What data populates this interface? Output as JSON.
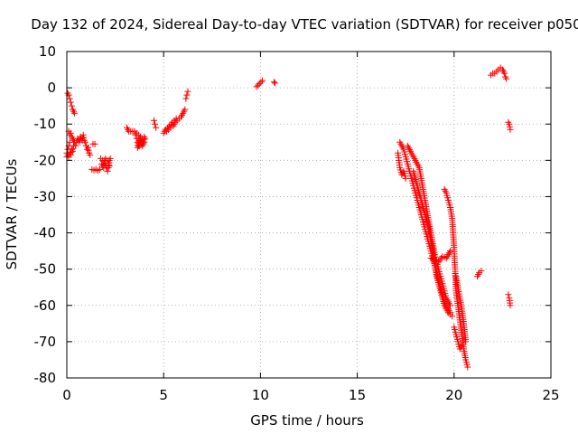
{
  "chart_data": {
    "type": "scatter",
    "title": "Day 132 of 2024, Sidereal Day-to-day VTEC variation (SDTVAR) for receiver p050",
    "xlabel": "GPS time / hours",
    "ylabel": "SDTVAR / TECUs",
    "xlim": [
      0,
      25
    ],
    "ylim": [
      -80,
      10
    ],
    "xticks": [
      0,
      5,
      10,
      15,
      20,
      25
    ],
    "yticks": [
      -80,
      -70,
      -60,
      -50,
      -40,
      -30,
      -20,
      -10,
      0,
      10
    ],
    "xtick_labels": [
      "0",
      "5",
      "10",
      "15",
      "20",
      "25"
    ],
    "ytick_labels": [
      "-80",
      "-70",
      "-60",
      "-50",
      "-40",
      "-30",
      "-20",
      "-10",
      "0",
      "10"
    ],
    "grid": true,
    "legend": false,
    "marker": "plus",
    "series": [
      {
        "name": "SDTVAR",
        "color": "#ff0000",
        "segments": [
          [
            [
              0.0,
              -19
            ],
            [
              0.05,
              -18.5
            ],
            [
              0.1,
              -19
            ],
            [
              0.15,
              -18
            ],
            [
              0.2,
              -18.5
            ],
            [
              0.25,
              -17
            ],
            [
              0.3,
              -17.5
            ],
            [
              0.35,
              -16
            ],
            [
              0.4,
              -15
            ],
            [
              0.45,
              -16
            ],
            [
              0.5,
              -15
            ],
            [
              0.55,
              -14
            ],
            [
              0.6,
              -14.5
            ],
            [
              0.65,
              -15
            ],
            [
              0.7,
              -13.5
            ],
            [
              0.75,
              -14
            ],
            [
              0.8,
              -14.5
            ],
            [
              0.85,
              -13
            ],
            [
              0.9,
              -14.5
            ],
            [
              0.95,
              -15
            ],
            [
              1.0,
              -16
            ],
            [
              1.05,
              -17
            ],
            [
              1.1,
              -16.5
            ],
            [
              1.15,
              -18
            ],
            [
              1.2,
              -18.5
            ]
          ],
          [
            [
              0.1,
              -12
            ],
            [
              0.15,
              -13
            ],
            [
              0.2,
              -12.5
            ],
            [
              0.25,
              -13.5
            ],
            [
              0.3,
              -14
            ],
            [
              0.35,
              -14.5
            ]
          ],
          [
            [
              0.05,
              -1.5
            ],
            [
              0.1,
              -2
            ],
            [
              0.15,
              -3
            ],
            [
              0.2,
              -4
            ],
            [
              0.25,
              -5
            ],
            [
              0.3,
              -6
            ],
            [
              0.35,
              -6.5
            ],
            [
              0.4,
              -7
            ]
          ],
          [
            [
              0.0,
              -18
            ],
            [
              0.05,
              -17
            ],
            [
              0.1,
              -16
            ],
            [
              0.15,
              -15
            ]
          ],
          [
            [
              1.35,
              -15.5
            ],
            [
              1.45,
              -15.5
            ]
          ],
          [
            [
              1.3,
              -22.5
            ],
            [
              1.4,
              -22.7
            ],
            [
              1.5,
              -22.5
            ],
            [
              1.6,
              -22.8
            ],
            [
              1.7,
              -22.5
            ]
          ],
          [
            [
              1.75,
              -19.5
            ],
            [
              1.85,
              -20
            ],
            [
              1.9,
              -21
            ],
            [
              1.95,
              -20
            ],
            [
              2.0,
              -21.5
            ],
            [
              2.05,
              -22
            ],
            [
              2.1,
              -23
            ],
            [
              2.15,
              -22
            ],
            [
              2.2,
              -20
            ],
            [
              2.25,
              -19.5
            ]
          ],
          [
            [
              1.8,
              -21
            ],
            [
              1.9,
              -22
            ],
            [
              2.0,
              -19.5
            ],
            [
              2.1,
              -20
            ],
            [
              2.2,
              -21.5
            ]
          ],
          [
            [
              3.1,
              -11
            ],
            [
              3.2,
              -12
            ],
            [
              3.3,
              -12
            ],
            [
              3.4,
              -12
            ]
          ],
          [
            [
              3.5,
              -12
            ],
            [
              3.55,
              -13
            ],
            [
              3.6,
              -14
            ],
            [
              3.65,
              -15
            ],
            [
              3.7,
              -16
            ],
            [
              3.75,
              -15.5
            ],
            [
              3.8,
              -14.5
            ],
            [
              3.85,
              -15
            ],
            [
              3.9,
              -14
            ],
            [
              3.95,
              -15
            ],
            [
              4.0,
              -13.5
            ],
            [
              4.05,
              -14
            ]
          ],
          [
            [
              3.6,
              -12.5
            ],
            [
              3.7,
              -13
            ],
            [
              3.8,
              -13.5
            ],
            [
              3.9,
              -16
            ],
            [
              4.0,
              -15
            ],
            [
              3.65,
              -16.5
            ],
            [
              3.75,
              -14
            ]
          ],
          [
            [
              4.5,
              -9
            ],
            [
              4.55,
              -10
            ],
            [
              4.6,
              -11
            ]
          ],
          [
            [
              5.0,
              -12.5
            ],
            [
              5.1,
              -11.5
            ],
            [
              5.2,
              -11
            ],
            [
              5.3,
              -10.5
            ],
            [
              5.4,
              -10
            ],
            [
              5.5,
              -10.5
            ],
            [
              5.6,
              -9.5
            ],
            [
              5.7,
              -9
            ],
            [
              5.8,
              -8.5
            ],
            [
              5.9,
              -8
            ],
            [
              6.0,
              -7
            ],
            [
              6.05,
              -6.5
            ],
            [
              6.1,
              -6
            ]
          ],
          [
            [
              5.15,
              -12
            ],
            [
              5.25,
              -11.5
            ],
            [
              5.35,
              -11
            ],
            [
              5.45,
              -9.5
            ],
            [
              5.55,
              -9
            ],
            [
              5.65,
              -8.5
            ]
          ],
          [
            [
              6.15,
              -3
            ],
            [
              6.2,
              -2
            ],
            [
              6.25,
              -1
            ]
          ],
          [
            [
              9.8,
              0.3
            ],
            [
              10.1,
              2
            ]
          ],
          [
            [
              10.7,
              1.6
            ],
            [
              10.75,
              1.3
            ]
          ],
          [
            [
              17.2,
              -15
            ],
            [
              17.3,
              -16
            ],
            [
              17.4,
              -17
            ],
            [
              17.5,
              -19
            ],
            [
              17.6,
              -21
            ],
            [
              17.7,
              -23
            ],
            [
              17.8,
              -25
            ],
            [
              17.9,
              -27
            ],
            [
              18.0,
              -29
            ],
            [
              18.1,
              -31
            ],
            [
              18.2,
              -33
            ],
            [
              18.3,
              -35
            ],
            [
              18.4,
              -37
            ],
            [
              18.5,
              -39
            ],
            [
              18.6,
              -41
            ],
            [
              18.7,
              -43
            ],
            [
              18.8,
              -45
            ],
            [
              18.9,
              -47
            ],
            [
              19.0,
              -49
            ],
            [
              19.1,
              -51
            ],
            [
              19.2,
              -53
            ],
            [
              19.3,
              -55
            ],
            [
              19.4,
              -57
            ],
            [
              19.5,
              -59
            ],
            [
              19.6,
              -60
            ],
            [
              19.7,
              -61
            ],
            [
              19.8,
              -62
            ]
          ],
          [
            [
              17.1,
              -18
            ],
            [
              17.15,
              -20
            ],
            [
              17.2,
              -22
            ],
            [
              17.3,
              -24
            ],
            [
              17.4,
              -23
            ],
            [
              17.5,
              -25
            ]
          ],
          [
            [
              17.6,
              -16
            ],
            [
              17.8,
              -18
            ],
            [
              18.0,
              -20
            ],
            [
              18.2,
              -22
            ],
            [
              18.3,
              -25
            ],
            [
              18.4,
              -28
            ],
            [
              18.5,
              -31
            ],
            [
              18.6,
              -34
            ],
            [
              18.7,
              -37
            ],
            [
              18.8,
              -40
            ],
            [
              18.9,
              -43
            ],
            [
              19.0,
              -46
            ],
            [
              19.1,
              -48
            ],
            [
              19.2,
              -50
            ],
            [
              19.3,
              -52
            ],
            [
              19.4,
              -54
            ],
            [
              19.5,
              -56
            ],
            [
              19.6,
              -58
            ],
            [
              19.7,
              -59
            ],
            [
              19.8,
              -60
            ]
          ],
          [
            [
              17.9,
              -23
            ],
            [
              18.1,
              -27
            ],
            [
              18.3,
              -31
            ],
            [
              18.5,
              -35
            ],
            [
              18.7,
              -39
            ],
            [
              18.9,
              -45
            ],
            [
              19.1,
              -52
            ],
            [
              19.3,
              -56
            ],
            [
              19.5,
              -60
            ],
            [
              19.7,
              -62
            ],
            [
              19.9,
              -63
            ]
          ],
          [
            [
              18.8,
              -47
            ],
            [
              19.0,
              -47.5
            ],
            [
              19.2,
              -48
            ],
            [
              19.4,
              -46.5
            ],
            [
              19.6,
              -47
            ],
            [
              19.8,
              -45
            ]
          ],
          [
            [
              19.5,
              -28
            ],
            [
              19.6,
              -29
            ],
            [
              19.7,
              -31
            ],
            [
              19.8,
              -33
            ],
            [
              19.9,
              -36
            ],
            [
              19.95,
              -40
            ],
            [
              20.0,
              -44
            ],
            [
              20.05,
              -50
            ],
            [
              20.1,
              -56
            ],
            [
              20.2,
              -60
            ],
            [
              20.3,
              -64
            ],
            [
              20.4,
              -68
            ],
            [
              20.5,
              -72
            ],
            [
              20.6,
              -75
            ],
            [
              20.7,
              -77
            ]
          ],
          [
            [
              20.1,
              -52
            ],
            [
              20.2,
              -55
            ],
            [
              20.3,
              -58
            ],
            [
              20.4,
              -61
            ],
            [
              20.5,
              -65
            ],
            [
              20.6,
              -70
            ]
          ],
          [
            [
              20.0,
              -66
            ],
            [
              20.1,
              -68
            ],
            [
              20.2,
              -70
            ],
            [
              20.3,
              -72
            ],
            [
              20.4,
              -71
            ]
          ],
          [
            [
              21.2,
              -52
            ],
            [
              21.3,
              -51
            ],
            [
              21.4,
              -50.5
            ]
          ],
          [
            [
              21.9,
              3.5
            ],
            [
              22.0,
              4
            ],
            [
              22.1,
              4
            ],
            [
              22.2,
              4.5
            ],
            [
              22.3,
              5
            ],
            [
              22.4,
              5.5
            ],
            [
              22.5,
              5
            ],
            [
              22.6,
              4
            ],
            [
              22.65,
              3
            ],
            [
              22.7,
              2.5
            ]
          ],
          [
            [
              22.8,
              -9.5
            ],
            [
              22.85,
              -10
            ],
            [
              22.9,
              -11.5
            ]
          ],
          [
            [
              22.8,
              -57
            ],
            [
              22.85,
              -58
            ],
            [
              22.9,
              -60
            ]
          ]
        ]
      }
    ]
  }
}
